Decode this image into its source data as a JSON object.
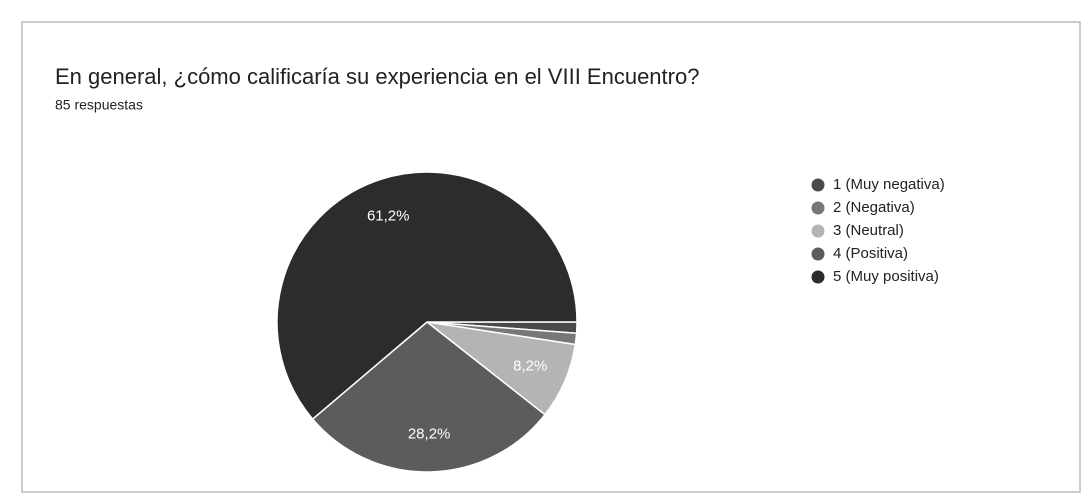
{
  "chart_data": {
    "type": "pie",
    "title": "En general, ¿cómo calificaría su experiencia en el VIII Encuentro?",
    "subtitle": "85 respuestas",
    "categories": [
      "1 (Muy negativa)",
      "2 (Negativa)",
      "3 (Neutral)",
      "4 (Positiva)",
      "5 (Muy positiva)"
    ],
    "values": [
      1.2,
      1.2,
      8.2,
      28.2,
      61.2
    ],
    "value_labels": [
      null,
      null,
      "8,2%",
      "28,2%",
      "61,2%"
    ],
    "colors": [
      "#4a4a4a",
      "#777777",
      "#b4b4b4",
      "#5c5c5c",
      "#2c2c2c"
    ],
    "legend": "right"
  }
}
